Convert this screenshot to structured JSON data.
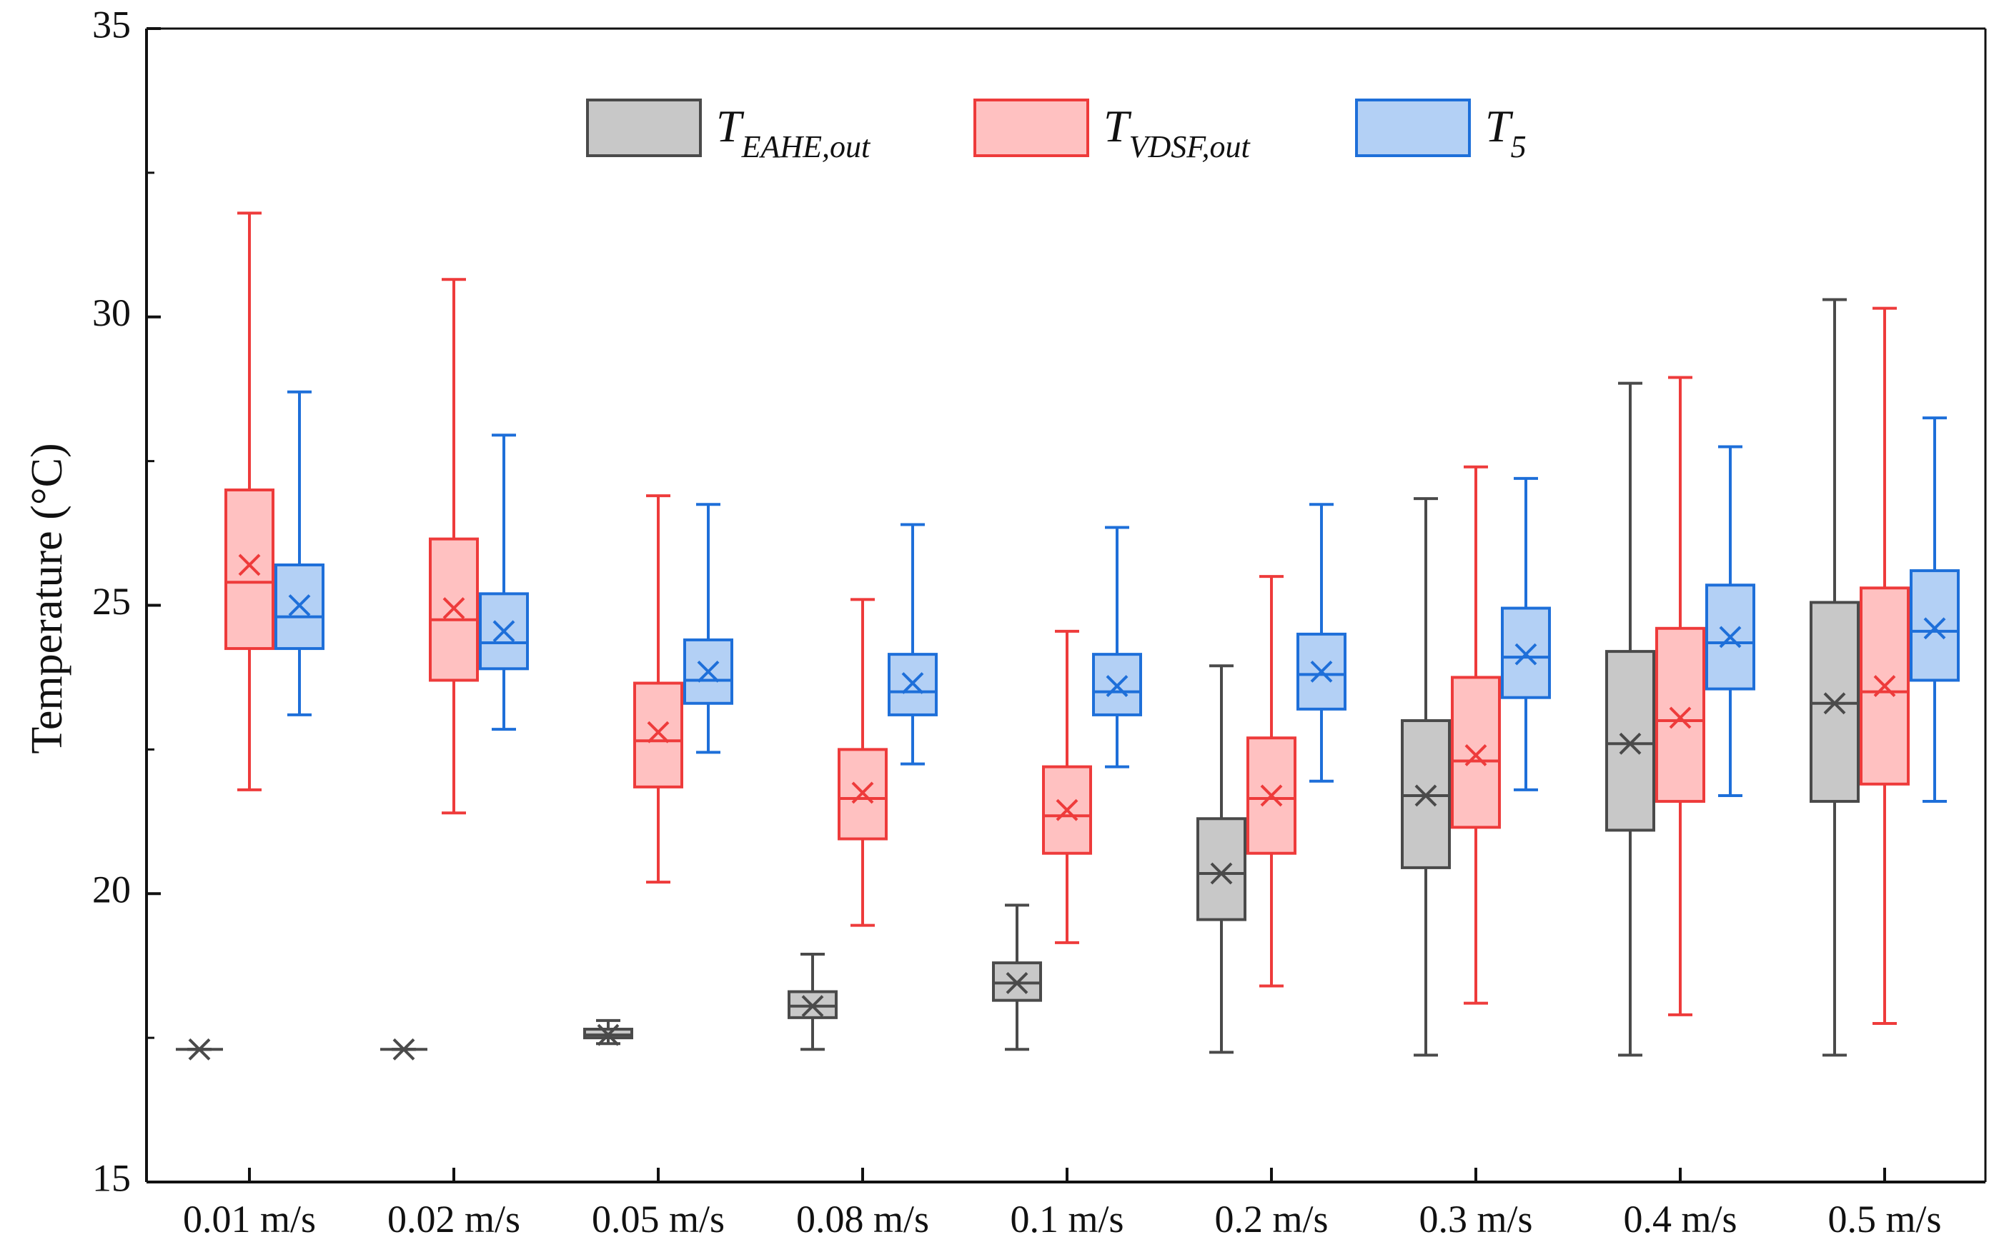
{
  "chart_data": {
    "type": "box",
    "title": "",
    "xlabel": "",
    "ylabel": "Temperature (°C)",
    "ylim": [
      15,
      35
    ],
    "yticks": [
      15,
      20,
      25,
      30,
      35
    ],
    "categories": [
      "0.01 m/s",
      "0.02 m/s",
      "0.05 m/s",
      "0.08 m/s",
      "0.1 m/s",
      "0.2 m/s",
      "0.3 m/s",
      "0.4 m/s",
      "0.5 m/s"
    ],
    "legend_position": "top-center",
    "series": [
      {
        "name": "T_EAHE,out",
        "label_main": "T",
        "label_sub": "EAHE,out",
        "fill": "#c8c8c8",
        "stroke": "#4a4a4a",
        "boxes": [
          {
            "category": "0.01 m/s",
            "min": 17.3,
            "q1": 17.3,
            "median": 17.3,
            "q3": 17.3,
            "max": 17.3,
            "mean": 17.3
          },
          {
            "category": "0.02 m/s",
            "min": 17.3,
            "q1": 17.3,
            "median": 17.3,
            "q3": 17.3,
            "max": 17.3,
            "mean": 17.3
          },
          {
            "category": "0.05 m/s",
            "min": 17.4,
            "q1": 17.5,
            "median": 17.55,
            "q3": 17.65,
            "max": 17.8,
            "mean": 17.55
          },
          {
            "category": "0.08 m/s",
            "min": 17.3,
            "q1": 17.85,
            "median": 18.05,
            "q3": 18.3,
            "max": 18.95,
            "mean": 18.05
          },
          {
            "category": "0.1 m/s",
            "min": 17.3,
            "q1": 18.15,
            "median": 18.45,
            "q3": 18.8,
            "max": 19.8,
            "mean": 18.45
          },
          {
            "category": "0.2 m/s",
            "min": 17.25,
            "q1": 19.55,
            "median": 20.35,
            "q3": 21.3,
            "max": 23.95,
            "mean": 20.35
          },
          {
            "category": "0.3 m/s",
            "min": 17.2,
            "q1": 20.45,
            "median": 21.7,
            "q3": 23.0,
            "max": 26.85,
            "mean": 21.7
          },
          {
            "category": "0.4 m/s",
            "min": 17.2,
            "q1": 21.1,
            "median": 22.6,
            "q3": 24.2,
            "max": 28.85,
            "mean": 22.6
          },
          {
            "category": "0.5 m/s",
            "min": 17.2,
            "q1": 21.6,
            "median": 23.3,
            "q3": 25.05,
            "max": 30.3,
            "mean": 23.3
          }
        ]
      },
      {
        "name": "T_VDSF,out",
        "label_main": "T",
        "label_sub": "VDSF,out",
        "fill": "#ffc1c1",
        "stroke": "#ee3b3b",
        "boxes": [
          {
            "category": "0.01 m/s",
            "min": 21.8,
            "q1": 24.25,
            "median": 25.4,
            "q3": 27.0,
            "max": 31.8,
            "mean": 25.7
          },
          {
            "category": "0.02 m/s",
            "min": 21.4,
            "q1": 23.7,
            "median": 24.75,
            "q3": 26.15,
            "max": 30.65,
            "mean": 24.95
          },
          {
            "category": "0.05 m/s",
            "min": 20.2,
            "q1": 21.85,
            "median": 22.65,
            "q3": 23.65,
            "max": 26.9,
            "mean": 22.8
          },
          {
            "category": "0.08 m/s",
            "min": 19.45,
            "q1": 20.95,
            "median": 21.65,
            "q3": 22.5,
            "max": 25.1,
            "mean": 21.75
          },
          {
            "category": "0.1 m/s",
            "min": 19.15,
            "q1": 20.7,
            "median": 21.35,
            "q3": 22.2,
            "max": 24.55,
            "mean": 21.45
          },
          {
            "category": "0.2 m/s",
            "min": 18.4,
            "q1": 20.7,
            "median": 21.65,
            "q3": 22.7,
            "max": 25.5,
            "mean": 21.7
          },
          {
            "category": "0.3 m/s",
            "min": 18.1,
            "q1": 21.15,
            "median": 22.3,
            "q3": 23.75,
            "max": 27.4,
            "mean": 22.4
          },
          {
            "category": "0.4 m/s",
            "min": 17.9,
            "q1": 21.6,
            "median": 23.0,
            "q3": 24.6,
            "max": 28.95,
            "mean": 23.05
          },
          {
            "category": "0.5 m/s",
            "min": 17.75,
            "q1": 21.9,
            "median": 23.5,
            "q3": 25.3,
            "max": 30.15,
            "mean": 23.6
          }
        ]
      },
      {
        "name": "T_5",
        "label_main": "T",
        "label_sub": "5",
        "fill": "#b3d0f5",
        "stroke": "#1e6fd9",
        "boxes": [
          {
            "category": "0.01 m/s",
            "min": 23.1,
            "q1": 24.25,
            "median": 24.8,
            "q3": 25.7,
            "max": 28.7,
            "mean": 25.0
          },
          {
            "category": "0.02 m/s",
            "min": 22.85,
            "q1": 23.9,
            "median": 24.35,
            "q3": 25.2,
            "max": 27.95,
            "mean": 24.55
          },
          {
            "category": "0.05 m/s",
            "min": 22.45,
            "q1": 23.3,
            "median": 23.7,
            "q3": 24.4,
            "max": 26.75,
            "mean": 23.85
          },
          {
            "category": "0.08 m/s",
            "min": 22.25,
            "q1": 23.1,
            "median": 23.5,
            "q3": 24.15,
            "max": 26.4,
            "mean": 23.65
          },
          {
            "category": "0.1 m/s",
            "min": 22.2,
            "q1": 23.1,
            "median": 23.5,
            "q3": 24.15,
            "max": 26.35,
            "mean": 23.6
          },
          {
            "category": "0.2 m/s",
            "min": 21.95,
            "q1": 23.2,
            "median": 23.8,
            "q3": 24.5,
            "max": 26.75,
            "mean": 23.85
          },
          {
            "category": "0.3 m/s",
            "min": 21.8,
            "q1": 23.4,
            "median": 24.1,
            "q3": 24.95,
            "max": 27.2,
            "mean": 24.15
          },
          {
            "category": "0.4 m/s",
            "min": 21.7,
            "q1": 23.55,
            "median": 24.35,
            "q3": 25.35,
            "max": 27.75,
            "mean": 24.45
          },
          {
            "category": "0.5 m/s",
            "min": 21.6,
            "q1": 23.7,
            "median": 24.55,
            "q3": 25.6,
            "max": 28.25,
            "mean": 24.6
          }
        ]
      }
    ]
  }
}
